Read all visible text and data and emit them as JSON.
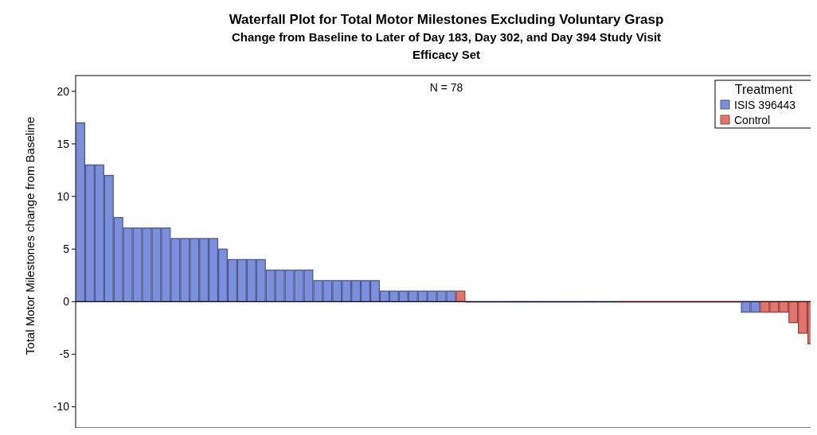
{
  "chart_data": {
    "type": "bar",
    "title": "Waterfall Plot for Total Motor Milestones Excluding Voluntary Grasp",
    "subtitle": "Change from Baseline to Later of Day 183, Day 302, and Day 394 Study Visit\nEfficacy Set",
    "ylabel": "Total Motor Milestones change from Baseline",
    "legend_title": "Treatment",
    "legend": "top right",
    "annotations": [
      "N = 78"
    ],
    "tick_labels": "y",
    "grid": false,
    "ref_lines": [
      {
        "axis": "y",
        "value": 0
      }
    ],
    "categories": [
      null,
      null,
      null,
      null,
      null,
      null,
      null,
      null,
      null,
      null,
      null,
      null,
      null,
      null,
      null,
      null,
      null,
      null,
      null,
      null,
      null,
      null,
      null,
      null,
      null,
      null,
      null,
      null,
      null,
      null,
      null,
      null,
      null,
      null,
      null,
      null,
      null,
      null,
      null,
      null,
      null,
      null,
      null,
      null,
      null,
      null,
      null,
      null,
      null,
      null,
      null,
      null,
      null,
      null,
      null,
      null,
      null,
      null,
      null,
      null,
      null,
      null,
      null,
      null,
      null,
      null,
      null,
      null,
      null,
      null,
      null,
      null,
      null,
      null,
      null,
      null,
      null,
      null
    ],
    "ylim": [
      -12,
      21.5
    ],
    "yticks": [
      -10,
      -5,
      0,
      5,
      10,
      15,
      20
    ],
    "series": [
      {
        "name": "ISIS 396443",
        "color": "#7b8fdc",
        "values": [
          17,
          13,
          13,
          12,
          8,
          7,
          7,
          7,
          7,
          7,
          6,
          6,
          6,
          6,
          6,
          5,
          4,
          4,
          4,
          4,
          3,
          3,
          3,
          3,
          3,
          2,
          2,
          2,
          2,
          2,
          2,
          2,
          1,
          1,
          1,
          1,
          1,
          1,
          1,
          1,
          null,
          0,
          0,
          0,
          0,
          0,
          0,
          0,
          0,
          0,
          0,
          0,
          0,
          0,
          0,
          0,
          0,
          null,
          null,
          null,
          null,
          null,
          null,
          null,
          null,
          null,
          null,
          null,
          null,
          null,
          -1,
          -1,
          null,
          null,
          null,
          null,
          null,
          null
        ]
      },
      {
        "name": "Control",
        "color": "#e4736c",
        "values": [
          null,
          null,
          null,
          null,
          null,
          null,
          null,
          null,
          null,
          null,
          null,
          null,
          null,
          null,
          null,
          null,
          null,
          null,
          null,
          null,
          null,
          null,
          null,
          null,
          null,
          null,
          null,
          null,
          null,
          null,
          null,
          null,
          null,
          null,
          null,
          null,
          null,
          null,
          null,
          null,
          1,
          null,
          null,
          null,
          null,
          null,
          null,
          null,
          null,
          null,
          null,
          null,
          null,
          null,
          null,
          null,
          null,
          0,
          0,
          0,
          0,
          0,
          0,
          0,
          0,
          0,
          0,
          0,
          0,
          0,
          null,
          null,
          -1,
          -1,
          -1,
          -2,
          -3,
          -4
        ]
      }
    ]
  }
}
